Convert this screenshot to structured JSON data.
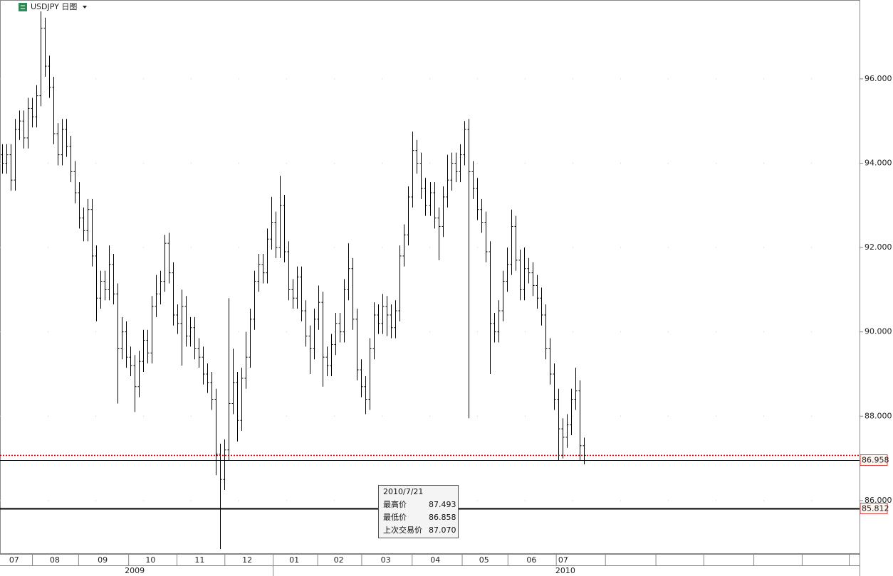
{
  "chart_data": {
    "type": "ohlc",
    "title": "USDJPY 日图",
    "open": [
      94.2,
      94.0,
      94.2,
      93.6,
      94.8,
      95.0,
      94.6,
      95.3,
      95.1,
      95.6,
      97.2,
      96.3,
      95.8,
      94.7,
      94.2,
      94.8,
      94.4,
      93.8,
      93.3,
      92.7,
      92.4,
      92.9,
      91.8,
      90.8,
      91.2,
      91.0,
      91.6,
      90.9,
      89.6,
      90.0,
      89.4,
      89.2,
      88.7,
      89.3,
      89.8,
      89.5,
      90.6,
      90.9,
      91.2,
      92.1,
      91.4,
      90.4,
      90.2,
      90.6,
      89.9,
      90.1,
      89.6,
      89.4,
      89.0,
      88.8,
      88.4,
      87.1,
      86.5,
      87.2,
      88.3,
      88.8,
      87.9,
      88.9,
      89.4,
      90.3,
      91.2,
      91.6,
      91.4,
      92.2,
      92.6,
      92.0,
      93.0,
      91.9,
      91.0,
      90.8,
      91.3,
      90.5,
      89.9,
      89.6,
      90.3,
      90.7,
      89.4,
      89.2,
      89.7,
      90.2,
      90.0,
      91.0,
      91.5,
      90.3,
      89.1,
      88.7,
      88.4,
      89.6,
      90.4,
      90.2,
      90.6,
      90.4,
      90.1,
      90.5,
      91.8,
      92.3,
      93.2,
      94.3,
      94.0,
      93.4,
      93.0,
      93.3,
      92.7,
      92.5,
      93.2,
      93.6,
      94.0,
      93.8,
      94.2,
      94.8,
      93.8,
      93.4,
      92.9,
      92.6,
      91.9,
      90.2,
      90.0,
      90.5,
      91.2,
      91.6,
      92.5,
      91.7,
      91.0,
      91.5,
      91.4,
      91.1,
      90.8,
      90.4,
      89.6,
      89.0,
      88.4,
      87.7,
      87.5,
      87.8,
      88.4,
      88.6,
      87.3
    ],
    "high": [
      94.45,
      94.45,
      94.45,
      95.05,
      95.25,
      95.25,
      95.55,
      95.55,
      95.85,
      97.6,
      97.45,
      96.55,
      96.05,
      94.95,
      95.05,
      95.05,
      94.65,
      94.05,
      93.55,
      92.95,
      93.15,
      93.15,
      92.05,
      91.45,
      91.45,
      92.05,
      91.85,
      91.15,
      90.35,
      90.25,
      89.65,
      89.45,
      89.55,
      90.05,
      90.05,
      90.85,
      91.35,
      91.45,
      92.3,
      92.35,
      91.65,
      90.65,
      91.0,
      90.85,
      90.35,
      90.35,
      89.85,
      89.65,
      89.25,
      89.05,
      88.65,
      87.35,
      87.45,
      90.8,
      89.6,
      89.05,
      89.15,
      90.0,
      90.55,
      91.45,
      91.85,
      91.85,
      92.45,
      93.2,
      92.85,
      93.7,
      93.25,
      92.15,
      91.25,
      91.55,
      91.55,
      90.75,
      90.15,
      90.55,
      91.1,
      90.95,
      89.65,
      89.95,
      90.45,
      90.45,
      91.25,
      92.1,
      91.75,
      90.55,
      89.35,
      88.95,
      89.85,
      90.7,
      90.65,
      90.9,
      90.85,
      90.65,
      90.75,
      92.05,
      92.55,
      93.45,
      94.75,
      94.55,
      94.25,
      93.65,
      93.55,
      93.55,
      92.95,
      93.45,
      94.2,
      94.25,
      94.25,
      94.45,
      95.0,
      95.05,
      94.05,
      93.65,
      93.15,
      92.85,
      92.15,
      90.45,
      90.75,
      91.45,
      92.0,
      92.9,
      92.75,
      91.95,
      92.0,
      91.75,
      91.65,
      91.35,
      91.05,
      90.65,
      89.85,
      89.25,
      88.65,
      87.95,
      88.05,
      88.65,
      89.15,
      88.85,
      87.493
    ],
    "low": [
      93.75,
      93.75,
      93.35,
      93.35,
      94.55,
      94.35,
      94.35,
      94.85,
      94.85,
      95.35,
      96.05,
      95.55,
      94.45,
      93.95,
      93.95,
      94.15,
      93.55,
      93.05,
      92.45,
      92.15,
      92.15,
      91.55,
      90.25,
      90.55,
      90.75,
      90.75,
      90.65,
      88.3,
      89.35,
      89.15,
      88.95,
      88.1,
      88.45,
      89.05,
      89.25,
      89.25,
      90.35,
      90.65,
      90.95,
      91.15,
      90.15,
      89.95,
      89.2,
      89.65,
      89.65,
      89.35,
      89.15,
      88.75,
      88.55,
      88.15,
      86.6,
      84.85,
      86.25,
      86.95,
      88.05,
      87.4,
      87.65,
      88.65,
      89.15,
      90.05,
      90.95,
      91.15,
      91.15,
      91.95,
      91.75,
      91.75,
      91.65,
      90.75,
      90.55,
      90.55,
      90.25,
      89.65,
      89.0,
      89.35,
      90.05,
      88.7,
      88.95,
      88.95,
      89.45,
      89.75,
      89.75,
      90.75,
      90.05,
      88.85,
      88.45,
      88.05,
      88.15,
      89.35,
      89.95,
      89.95,
      89.9,
      89.85,
      89.85,
      90.25,
      91.55,
      92.05,
      92.95,
      93.75,
      93.15,
      92.75,
      92.75,
      92.45,
      91.7,
      92.25,
      92.95,
      93.35,
      93.55,
      93.55,
      93.95,
      87.95,
      93.15,
      92.65,
      92.35,
      91.65,
      89.0,
      89.75,
      89.75,
      90.25,
      90.95,
      91.35,
      91.45,
      90.75,
      90.75,
      91.15,
      90.85,
      90.55,
      90.15,
      89.35,
      88.75,
      88.15,
      86.95,
      87.0,
      87.25,
      87.55,
      88.15,
      86.95,
      86.858
    ],
    "close": [
      94.0,
      94.2,
      93.6,
      94.8,
      95.0,
      94.6,
      95.3,
      95.1,
      95.6,
      97.2,
      96.3,
      95.8,
      94.7,
      94.2,
      94.8,
      94.4,
      93.8,
      93.3,
      92.7,
      92.4,
      92.9,
      91.8,
      90.8,
      91.2,
      91.0,
      91.6,
      90.9,
      89.6,
      90.0,
      89.4,
      89.2,
      88.7,
      89.3,
      89.8,
      89.5,
      90.6,
      90.9,
      91.2,
      92.1,
      91.4,
      90.4,
      90.2,
      90.6,
      89.9,
      90.1,
      89.6,
      89.4,
      89.0,
      88.8,
      88.4,
      87.1,
      86.5,
      87.2,
      88.3,
      88.8,
      87.9,
      88.9,
      89.4,
      90.3,
      91.2,
      91.6,
      91.4,
      92.2,
      92.6,
      92.0,
      93.0,
      91.9,
      91.0,
      90.8,
      91.3,
      90.5,
      89.9,
      89.6,
      90.3,
      90.7,
      89.4,
      89.2,
      89.7,
      90.2,
      90.0,
      91.0,
      91.5,
      90.3,
      89.1,
      88.7,
      88.4,
      89.6,
      90.4,
      90.2,
      90.6,
      90.4,
      90.1,
      90.5,
      91.8,
      92.3,
      93.2,
      94.3,
      94.0,
      93.4,
      93.0,
      93.3,
      92.7,
      92.5,
      93.2,
      93.6,
      94.0,
      93.8,
      94.2,
      94.8,
      93.8,
      93.4,
      92.9,
      92.6,
      91.9,
      90.2,
      90.0,
      90.5,
      91.2,
      91.6,
      92.5,
      91.7,
      91.0,
      91.5,
      91.4,
      91.1,
      90.8,
      90.4,
      89.6,
      89.0,
      88.4,
      87.7,
      87.5,
      87.8,
      88.4,
      88.6,
      87.3,
      87.07
    ],
    "xlim": [
      -0.5,
      200.5
    ],
    "ylim": [
      84.75,
      97.87
    ],
    "yticks": [
      {
        "value": 86,
        "label": "86.000"
      },
      {
        "value": 88,
        "label": "88.000"
      },
      {
        "value": 90,
        "label": "90.000"
      },
      {
        "value": 92,
        "label": "92.000"
      },
      {
        "value": 94,
        "label": "94.000"
      },
      {
        "value": 96,
        "label": "96.000"
      }
    ],
    "month_labels": [
      {
        "value": 2.8,
        "label": "07"
      },
      {
        "value": 12.3,
        "label": "08"
      },
      {
        "value": 23.5,
        "label": "09"
      },
      {
        "value": 34.7,
        "label": "10"
      },
      {
        "value": 46.2,
        "label": "11"
      },
      {
        "value": 57.3,
        "label": "12"
      },
      {
        "value": 68.3,
        "label": "01"
      },
      {
        "value": 78.7,
        "label": "02"
      },
      {
        "value": 89.7,
        "label": "03"
      },
      {
        "value": 101.3,
        "label": "04"
      },
      {
        "value": 112.7,
        "label": "05"
      },
      {
        "value": 123.8,
        "label": "06"
      },
      {
        "value": 131.2,
        "label": "07"
      }
    ],
    "month_dividers": [
      7,
      17.8,
      29.5,
      40.8,
      52,
      63.3,
      73.7,
      84,
      95.8,
      107.5,
      118.2,
      129.5,
      141,
      152.8,
      164,
      175.7,
      187,
      198
    ],
    "year_labels": [
      {
        "value": 31,
        "label": "2009"
      },
      {
        "value": 131.7,
        "label": "2010"
      }
    ],
    "year_dividers": [
      63.3
    ],
    "price_lines": [
      86.958,
      85.812
    ],
    "last_price_line": 87.07
  },
  "tooltip": {
    "date": "2010/7/21",
    "rows": [
      {
        "label": "最高价",
        "value": "87.493"
      },
      {
        "label": "最低价",
        "value": "86.858"
      },
      {
        "label": "上次交易价",
        "value": "87.070"
      }
    ]
  }
}
